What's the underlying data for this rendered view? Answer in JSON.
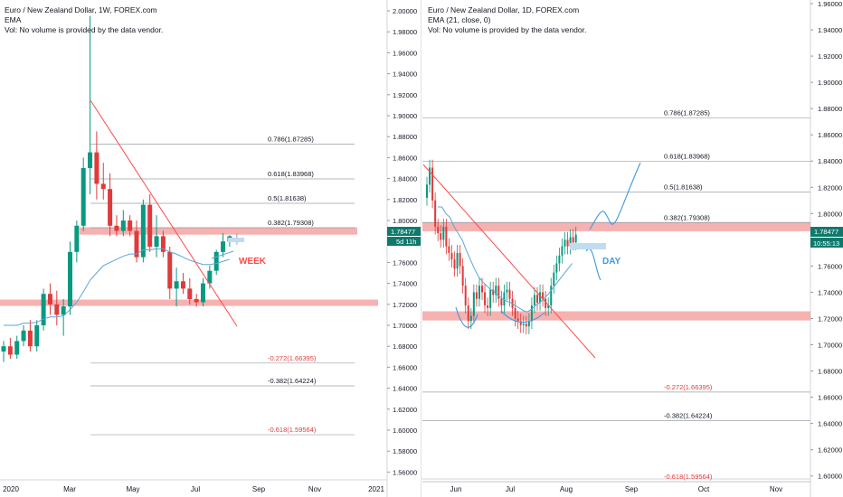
{
  "colors": {
    "up": "#089981",
    "down": "#e03a3a",
    "ema": "#5aa6d6",
    "zone": "#f4a3a3",
    "smallzone": "#bfdcf3",
    "trend": "#ff4a4a",
    "fib": "#9aa0a6",
    "projection": "#3d99e0",
    "price_badge": "#0f7a6c"
  },
  "left": {
    "header": {
      "title": "Euro / New Zealand Dollar, 1W, FOREX.com",
      "indicator": "EMA",
      "volume_note": "Vol: No volume is provided by the data vendor."
    },
    "annotation": "WEEK",
    "price_badge": "1.78477",
    "time_badge": "5d 11h"
  },
  "right": {
    "header": {
      "title": "Euro / New Zealand Dollar, 1D, FOREX.com",
      "indicator": "EMA (21, close, 0)",
      "volume_note": "Vol: No volume is provided by the data vendor."
    },
    "annotation": "DAY",
    "price_badge": "1.78477",
    "time_badge": "10:55:13"
  },
  "chart_data": [
    {
      "type": "candlestick",
      "title": "Euro / New Zealand Dollar, 1W, FOREX.com",
      "yaxis_ticks": [
        "2.00000",
        "1.98000",
        "1.96000",
        "1.94000",
        "1.92000",
        "1.90000",
        "1.88000",
        "1.86000",
        "1.84000",
        "1.82000",
        "1.80000",
        "1.78000",
        "1.76000",
        "1.74000",
        "1.72000",
        "1.70000",
        "1.68000",
        "1.66000",
        "1.64000",
        "1.62000",
        "1.60000",
        "1.58000",
        "1.56000"
      ],
      "xaxis_ticks": [
        "2020",
        "Mar",
        "May",
        "Jul",
        "Sep",
        "Nov",
        "2021"
      ],
      "ylim": [
        1.542,
        2.006
      ],
      "candles": [
        {
          "o": 1.675,
          "h": 1.685,
          "l": 1.665,
          "c": 1.68
        },
        {
          "o": 1.68,
          "h": 1.688,
          "l": 1.668,
          "c": 1.672
        },
        {
          "o": 1.672,
          "h": 1.69,
          "l": 1.668,
          "c": 1.685
        },
        {
          "o": 1.685,
          "h": 1.7,
          "l": 1.68,
          "c": 1.695
        },
        {
          "o": 1.695,
          "h": 1.705,
          "l": 1.675,
          "c": 1.68
        },
        {
          "o": 1.68,
          "h": 1.705,
          "l": 1.675,
          "c": 1.7
        },
        {
          "o": 1.7,
          "h": 1.735,
          "l": 1.695,
          "c": 1.73
        },
        {
          "o": 1.73,
          "h": 1.74,
          "l": 1.71,
          "c": 1.72
        },
        {
          "o": 1.72,
          "h": 1.733,
          "l": 1.7,
          "c": 1.71
        },
        {
          "o": 1.71,
          "h": 1.725,
          "l": 1.69,
          "c": 1.718
        },
        {
          "o": 1.718,
          "h": 1.78,
          "l": 1.71,
          "c": 1.77
        },
        {
          "o": 1.77,
          "h": 1.8,
          "l": 1.76,
          "c": 1.795
        },
        {
          "o": 1.795,
          "h": 1.86,
          "l": 1.79,
          "c": 1.85
        },
        {
          "o": 1.85,
          "h": 1.995,
          "l": 1.825,
          "c": 1.865
        },
        {
          "o": 1.865,
          "h": 1.885,
          "l": 1.82,
          "c": 1.835
        },
        {
          "o": 1.835,
          "h": 1.855,
          "l": 1.82,
          "c": 1.83
        },
        {
          "o": 1.83,
          "h": 1.845,
          "l": 1.785,
          "c": 1.795
        },
        {
          "o": 1.795,
          "h": 1.805,
          "l": 1.785,
          "c": 1.79
        },
        {
          "o": 1.79,
          "h": 1.81,
          "l": 1.785,
          "c": 1.8
        },
        {
          "o": 1.8,
          "h": 1.805,
          "l": 1.785,
          "c": 1.79
        },
        {
          "o": 1.79,
          "h": 1.8,
          "l": 1.76,
          "c": 1.765
        },
        {
          "o": 1.765,
          "h": 1.82,
          "l": 1.76,
          "c": 1.815
        },
        {
          "o": 1.815,
          "h": 1.825,
          "l": 1.77,
          "c": 1.775
        },
        {
          "o": 1.775,
          "h": 1.805,
          "l": 1.765,
          "c": 1.785
        },
        {
          "o": 1.785,
          "h": 1.79,
          "l": 1.765,
          "c": 1.77
        },
        {
          "o": 1.77,
          "h": 1.775,
          "l": 1.725,
          "c": 1.735
        },
        {
          "o": 1.735,
          "h": 1.755,
          "l": 1.718,
          "c": 1.742
        },
        {
          "o": 1.742,
          "h": 1.75,
          "l": 1.73,
          "c": 1.735
        },
        {
          "o": 1.735,
          "h": 1.745,
          "l": 1.72,
          "c": 1.725
        },
        {
          "o": 1.725,
          "h": 1.73,
          "l": 1.718,
          "c": 1.722
        },
        {
          "o": 1.722,
          "h": 1.745,
          "l": 1.718,
          "c": 1.74
        },
        {
          "o": 1.74,
          "h": 1.757,
          "l": 1.735,
          "c": 1.752
        },
        {
          "o": 1.752,
          "h": 1.772,
          "l": 1.748,
          "c": 1.77
        },
        {
          "o": 1.77,
          "h": 1.788,
          "l": 1.765,
          "c": 1.78
        },
        {
          "o": 1.78,
          "h": 1.786,
          "l": 1.775,
          "c": 1.785
        }
      ],
      "ema": [
        1.7,
        1.7,
        1.7,
        1.702,
        1.702,
        1.703,
        1.706,
        1.708,
        1.708,
        1.709,
        1.715,
        1.722,
        1.732,
        1.743,
        1.75,
        1.757,
        1.76,
        1.763,
        1.766,
        1.768,
        1.768,
        1.772,
        1.772,
        1.773,
        1.773,
        1.77,
        1.768,
        1.765,
        1.762,
        1.76,
        1.758,
        1.758,
        1.759,
        1.761,
        1.763
      ],
      "fib_levels": [
        {
          "label": "0.786(1.87285)",
          "value": 1.87285,
          "color": "#131722"
        },
        {
          "label": "0.618(1.83968)",
          "value": 1.83968,
          "color": "#131722"
        },
        {
          "label": "0.5(1.81638)",
          "value": 1.81638,
          "color": "#131722"
        },
        {
          "label": "0.382(1.79308)",
          "value": 1.79308,
          "color": "#131722"
        },
        {
          "label": "-0.272(1.66395)",
          "value": 1.66395,
          "color": "#e03a3a"
        },
        {
          "label": "-0.382(1.64224)",
          "value": 1.64224,
          "color": "#131722"
        },
        {
          "label": "-0.618(1.59564)",
          "value": 1.59564,
          "color": "#e03a3a"
        }
      ],
      "zones": [
        [
          1.7865,
          1.7935
        ],
        [
          1.7185,
          1.7245
        ]
      ]
    },
    {
      "type": "candlestick",
      "title": "Euro / New Zealand Dollar, 1D, FOREX.com",
      "yaxis_ticks": [
        "1.96000",
        "1.94000",
        "1.92000",
        "1.90000",
        "1.88000",
        "1.86000",
        "1.84000",
        "1.82000",
        "1.80000",
        "1.78000",
        "1.76000",
        "1.74000",
        "1.72000",
        "1.70000",
        "1.68000",
        "1.66000",
        "1.64000",
        "1.62000",
        "1.60000"
      ],
      "xaxis_ticks": [
        "Jun",
        "Jul",
        "Aug",
        "Sep",
        "Oct",
        "Nov"
      ],
      "ylim": [
        1.5964,
        1.9601
      ],
      "ema_label": "EMA (21, close, 0)",
      "fib_levels": [
        {
          "label": "0.786(1.87285)",
          "value": 1.87285,
          "color": "#131722"
        },
        {
          "label": "0.618(1.83968)",
          "value": 1.83968,
          "color": "#131722"
        },
        {
          "label": "0.5(1.81638)",
          "value": 1.81638,
          "color": "#131722"
        },
        {
          "label": "0.382(1.79308)",
          "value": 1.79308,
          "color": "#131722"
        },
        {
          "label": "-0.272(1.66395)",
          "value": 1.66395,
          "color": "#e03a3a"
        },
        {
          "label": "-0.382(1.64224)",
          "value": 1.64224,
          "color": "#131722"
        },
        {
          "label": "-0.618(1.59564)",
          "value": 1.59564,
          "color": "#e03a3a"
        }
      ],
      "zones": [
        [
          1.7865,
          1.7935
        ],
        [
          1.7185,
          1.7255
        ]
      ]
    }
  ]
}
